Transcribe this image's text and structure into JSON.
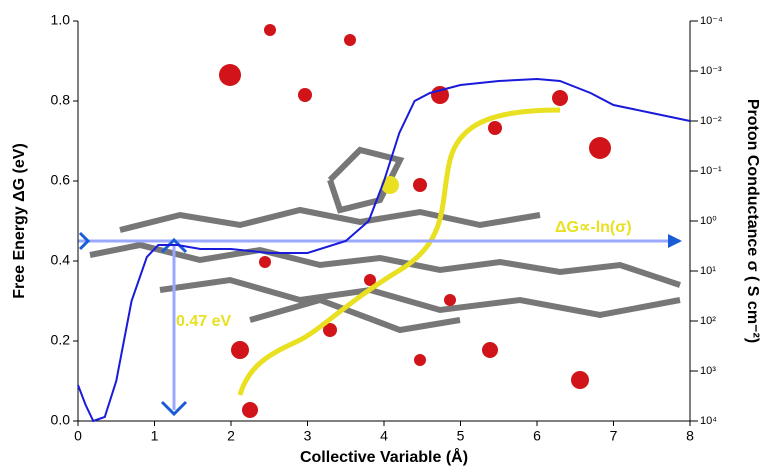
{
  "chart_data": {
    "type": "line",
    "xlabel": "Collective Variable (Å)",
    "ylabel": "Free Energy ΔG (eV)",
    "y2label": "Proton Conductance σ ( S cm⁻²)",
    "annotations": [
      "0.47 eV",
      "ΔG∝-ln(σ)"
    ],
    "x": [
      0,
      0.1,
      0.2,
      0.35,
      0.5,
      0.7,
      0.9,
      1.05,
      1.3,
      1.6,
      2.0,
      2.5,
      3.0,
      3.5,
      3.8,
      4.0,
      4.2,
      4.4,
      4.6,
      5.0,
      5.5,
      6.0,
      6.3,
      6.7,
      7.0,
      7.5,
      8.0
    ],
    "values": [
      0.09,
      0.04,
      0.0,
      0.01,
      0.1,
      0.3,
      0.41,
      0.44,
      0.44,
      0.43,
      0.43,
      0.42,
      0.42,
      0.45,
      0.5,
      0.6,
      0.72,
      0.8,
      0.82,
      0.84,
      0.85,
      0.855,
      0.85,
      0.82,
      0.79,
      0.77,
      0.75
    ],
    "color": "#1a1adb",
    "xlim": [
      0,
      8
    ],
    "xticks": [
      0,
      1,
      2,
      3,
      4,
      5,
      6,
      7,
      8
    ],
    "ylim": [
      0,
      1
    ],
    "yticks": [
      {
        "value": 0,
        "label": "0.0"
      },
      0.2,
      0.4,
      0.6,
      0.8,
      {
        "value": 1,
        "label": "1.0"
      }
    ],
    "y2scale": "log",
    "y2lim": [
      10000,
      0.0001
    ],
    "y2ticks": [
      {
        "value": 0.0001,
        "label": "10⁻⁴"
      },
      {
        "value": 0.001,
        "label": "10⁻³"
      },
      {
        "value": 0.01,
        "label": "10⁻²"
      },
      {
        "value": 0.1,
        "label": "10⁻¹"
      },
      {
        "value": 1,
        "label": "10⁰"
      },
      {
        "value": 10,
        "label": "10¹"
      },
      {
        "value": 100,
        "label": "10²"
      },
      {
        "value": 1000,
        "label": "10³"
      },
      {
        "value": 10000,
        "label": "10⁴"
      }
    ]
  }
}
